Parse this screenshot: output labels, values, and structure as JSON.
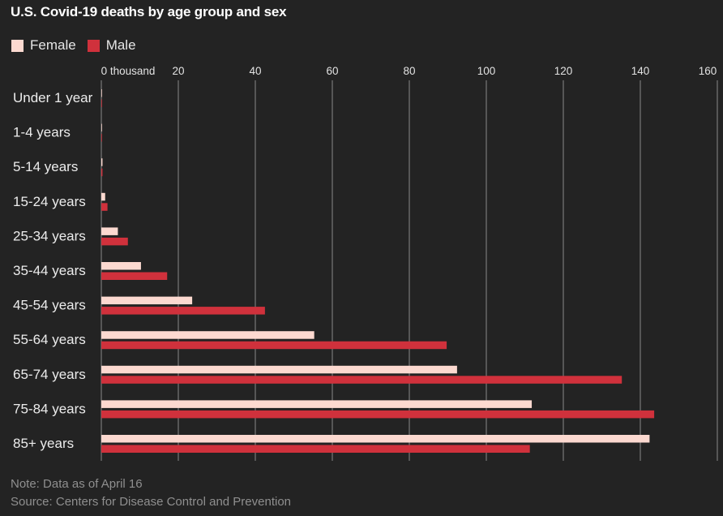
{
  "chart_data": {
    "type": "bar",
    "orientation": "horizontal",
    "title": "U.S. Covid-19 deaths by age group and sex",
    "categories": [
      "Under 1 year",
      "1-4 years",
      "5-14 years",
      "15-24 years",
      "25-34 years",
      "35-44 years",
      "45-54 years",
      "55-64 years",
      "65-74 years",
      "75-84 years",
      "85+ years"
    ],
    "series": [
      {
        "name": "Female",
        "color": "#fcd9d0",
        "values": [
          0.05,
          0.05,
          0.3,
          1.0,
          4.3,
          10.3,
          23.6,
          55.3,
          92.4,
          111.8,
          142.4
        ]
      },
      {
        "name": "Male",
        "color": "#d0313c",
        "values": [
          0.05,
          0.05,
          0.3,
          1.6,
          6.9,
          17.1,
          42.5,
          89.7,
          135.2,
          143.6,
          111.3
        ]
      }
    ],
    "xlim": [
      0,
      160
    ],
    "xticks": [
      "0 thousand",
      "20",
      "40",
      "60",
      "80",
      "100",
      "120",
      "140",
      "160"
    ],
    "xtick_values": [
      0,
      20,
      40,
      60,
      80,
      100,
      120,
      140,
      160
    ],
    "grid": true,
    "legend_placement": "top-left",
    "note": "Note: Data as of April 16",
    "source": "Source: Centers for Disease Control and Prevention"
  }
}
